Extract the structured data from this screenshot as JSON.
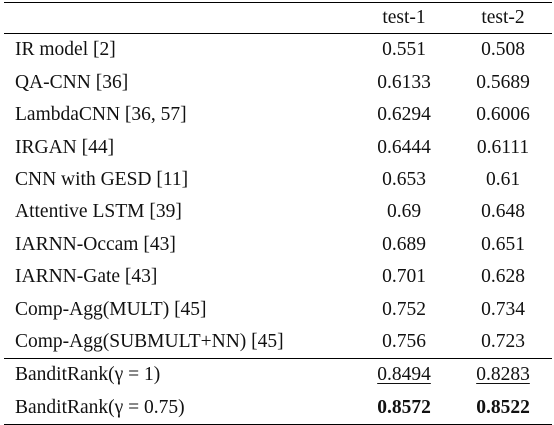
{
  "table": {
    "columns": [
      "",
      "test-1",
      "test-2"
    ],
    "rows": [
      {
        "method": "IR model [2]",
        "test1": "0.551",
        "test2": "0.508"
      },
      {
        "method": "QA-CNN [36]",
        "test1": "0.6133",
        "test2": "0.5689"
      },
      {
        "method": "LambdaCNN [36, 57]",
        "test1": "0.6294",
        "test2": "0.6006"
      },
      {
        "method": "IRGAN [44]",
        "test1": "0.6444",
        "test2": "0.6111"
      },
      {
        "method": "CNN with GESD [11]",
        "test1": "0.653",
        "test2": "0.61"
      },
      {
        "method": "Attentive LSTM [39]",
        "test1": "0.69",
        "test2": "0.648"
      },
      {
        "method": "IARNN-Occam [43]",
        "test1": "0.689",
        "test2": "0.651"
      },
      {
        "method": "IARNN-Gate [43]",
        "test1": "0.701",
        "test2": "0.628"
      },
      {
        "method": "Comp-Agg(MULT) [45]",
        "test1": "0.752",
        "test2": "0.734"
      },
      {
        "method": "Comp-Agg(SUBMULT+NN) [45]",
        "test1": "0.756",
        "test2": "0.723"
      }
    ],
    "proposed": [
      {
        "method": "BanditRank(γ = 1)",
        "test1": "0.8494",
        "test2": "0.8283",
        "style": "underline"
      },
      {
        "method": "BanditRank(γ = 0.75)",
        "test1": "0.8572",
        "test2": "0.8522",
        "style": "bold"
      }
    ]
  }
}
